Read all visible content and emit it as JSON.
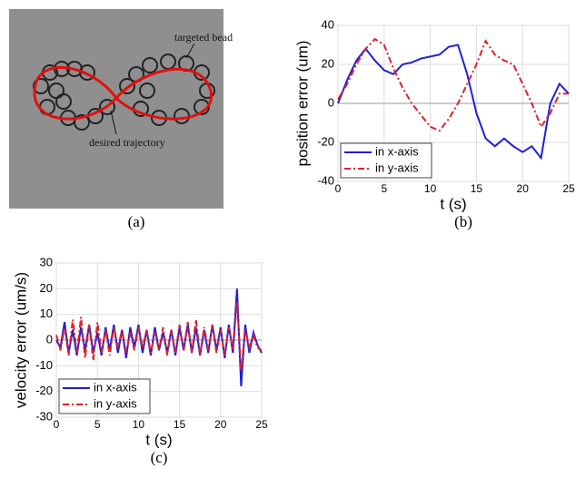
{
  "image": {
    "annotations": [
      "targeted bead",
      "desired trajectory"
    ],
    "caption": "(a)"
  },
  "chart_data": [
    {
      "type": "line",
      "caption": "(b)",
      "xlabel": "t (s)",
      "ylabel": "position error (um)",
      "xlim": [
        0,
        25
      ],
      "ylim": [
        -40,
        40
      ],
      "xticks": [
        0,
        5,
        10,
        15,
        20,
        25
      ],
      "yticks": [
        -40,
        -20,
        0,
        20,
        40
      ],
      "legend": "lower left",
      "x": [
        0,
        1,
        2,
        3,
        4,
        5,
        6,
        7,
        8,
        9,
        10,
        11,
        12,
        13,
        14,
        15,
        16,
        17,
        18,
        19,
        20,
        21,
        22,
        23,
        24,
        25
      ],
      "series": [
        {
          "name": "in x-axis",
          "color": "#1f1fd6",
          "style": "solid",
          "values": [
            0,
            12,
            22,
            28,
            22,
            17,
            15,
            20,
            21,
            23,
            24,
            25,
            29,
            30,
            15,
            -5,
            -18,
            -22,
            -18,
            -22,
            -25,
            -22,
            -28,
            0,
            10,
            5
          ]
        },
        {
          "name": "in y-axis",
          "color": "#e0202a",
          "style": "dashdot",
          "values": [
            2,
            10,
            20,
            28,
            33,
            30,
            18,
            8,
            0,
            -6,
            -12,
            -14,
            -8,
            0,
            10,
            20,
            32,
            25,
            22,
            20,
            10,
            0,
            -12,
            -5,
            5,
            5
          ]
        }
      ]
    },
    {
      "type": "line",
      "caption": "(c)",
      "xlabel": "t (s)",
      "ylabel": "velocity error (um/s)",
      "xlim": [
        0,
        25
      ],
      "ylim": [
        -30,
        30
      ],
      "xticks": [
        0,
        5,
        10,
        15,
        20,
        25
      ],
      "yticks": [
        -30,
        -20,
        -10,
        0,
        10,
        20,
        30
      ],
      "legend": "lower left",
      "x": [
        0,
        0.5,
        1,
        1.5,
        2,
        2.5,
        3,
        3.5,
        4,
        4.5,
        5,
        5.5,
        6,
        6.5,
        7,
        7.5,
        8,
        8.5,
        9,
        9.5,
        10,
        10.5,
        11,
        11.5,
        12,
        12.5,
        13,
        13.5,
        14,
        14.5,
        15,
        15.5,
        16,
        16.5,
        17,
        17.5,
        18,
        18.5,
        19,
        19.5,
        20,
        20.5,
        21,
        21.5,
        22,
        22.5,
        23,
        23.5,
        24,
        24.5,
        25
      ],
      "series": [
        {
          "name": "in x-axis",
          "color": "#1f1fd6",
          "style": "solid",
          "values": [
            0,
            -3,
            7,
            -5,
            4,
            -6,
            5,
            -4,
            6,
            -5,
            3,
            -6,
            5,
            -4,
            6,
            -5,
            4,
            -7,
            5,
            -3,
            6,
            -5,
            4,
            -6,
            5,
            -4,
            3,
            -5,
            4,
            -6,
            5,
            -4,
            6,
            -5,
            5,
            -6,
            4,
            -5,
            6,
            -4,
            5,
            -7,
            6,
            -5,
            20,
            -18,
            6,
            -5,
            3,
            -2,
            -5
          ]
        },
        {
          "name": "in y-axis",
          "color": "#e0202a",
          "style": "dashdot",
          "values": [
            2,
            -4,
            5,
            -6,
            8,
            -5,
            9,
            -7,
            6,
            -8,
            7,
            -5,
            4,
            -6,
            5,
            -3,
            4,
            -5,
            3,
            -4,
            5,
            -3,
            4,
            -5,
            3,
            -4,
            5,
            -6,
            4,
            -5,
            6,
            -4,
            7,
            -5,
            8,
            -6,
            5,
            -4,
            6,
            -5,
            4,
            -6,
            5,
            -4,
            15,
            -12,
            4,
            -3,
            2,
            -3,
            -4
          ]
        }
      ]
    }
  ]
}
